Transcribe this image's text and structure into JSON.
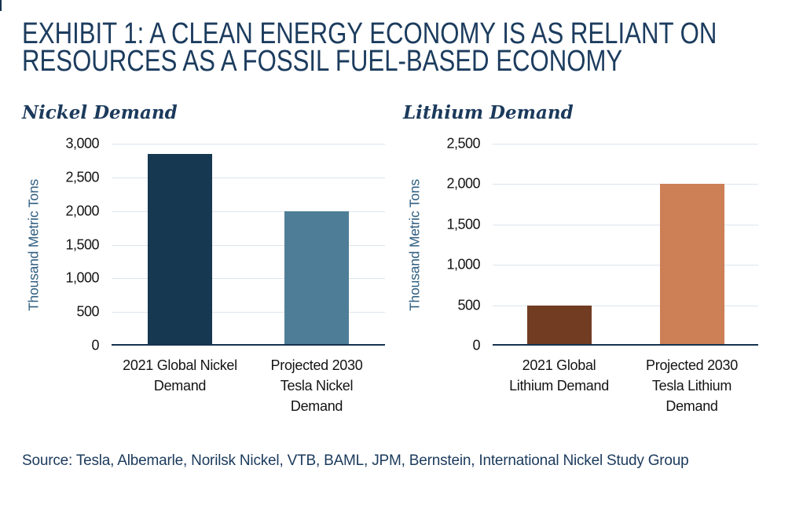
{
  "page": {
    "title_line1": "EXHIBIT 1: A CLEAN ENERGY ECONOMY IS AS RELIANT ON",
    "title_line2": "RESOURCES AS A FOSSIL FUEL-BASED ECONOMY",
    "source": "Source: Tesla, Albemarle, Norilsk Nickel, VTB, BAML, JPM, Bernstein, International Nickel Study Group"
  },
  "colors": {
    "title_navy": "#1C3C5E",
    "subtitle_navy": "#1B3A5C",
    "axis_label_blue": "#2F5E80",
    "tick_text": "#141414",
    "gridline": "#DCE5EF",
    "baseline": "#16324F",
    "nickel_2021_bar": "#163850",
    "nickel_2030_bar": "#4E7E97",
    "lithium_2021_bar": "#713C22",
    "lithium_2030_bar": "#CD7F55"
  },
  "chart_data": [
    {
      "type": "bar",
      "title": "Nickel Demand",
      "categories": [
        "2021 Global Nickel Demand",
        "Projected 2030 Tesla Nickel Demand"
      ],
      "values": [
        2850,
        2000
      ],
      "bar_colors": [
        "#163850",
        "#4E7E97"
      ],
      "ylabel": "Thousand Metric Tons",
      "xlabel": "",
      "ylim": [
        0,
        3000
      ],
      "ytick_step": 500,
      "grid": true,
      "legend": "none"
    },
    {
      "type": "bar",
      "title": "Lithium Demand",
      "categories": [
        "2021 Global Lithium Demand",
        "Projected 2030 Tesla Lithium Demand"
      ],
      "values": [
        500,
        2000
      ],
      "bar_colors": [
        "#713C22",
        "#CD7F55"
      ],
      "ylabel": "Thousand Metric Tons",
      "xlabel": "",
      "ylim": [
        0,
        2500
      ],
      "ytick_step": 500,
      "grid": true,
      "legend": "none"
    }
  ]
}
